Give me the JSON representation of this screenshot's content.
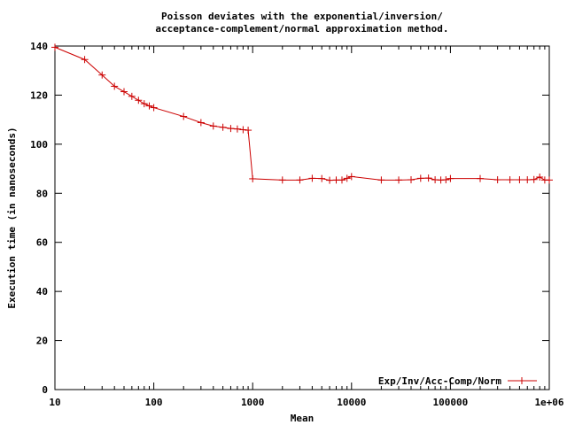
{
  "chart_data": {
    "type": "line",
    "title_lines": [
      "Poisson deviates with the exponential/inversion/",
      "acceptance-complement/normal approximation method."
    ],
    "xlabel": "Mean",
    "ylabel": "Execution time (in nanoseconds)",
    "x_scale": "log",
    "xlim": [
      10,
      1000000
    ],
    "ylim": [
      0,
      140
    ],
    "x_tick_labels": [
      "10",
      "100",
      "1000",
      "10000",
      "100000",
      "1e+06"
    ],
    "y_tick_labels": [
      "0",
      "20",
      "40",
      "60",
      "80",
      "100",
      "120",
      "140"
    ],
    "grid": false,
    "legend_position": "bottom-right",
    "series": [
      {
        "name": "Exp/Inv/Acc-Comp/Norm",
        "color": "#cc0000",
        "points": [
          [
            10,
            139.5
          ],
          [
            20,
            134.5
          ],
          [
            30,
            128.2
          ],
          [
            40,
            123.6
          ],
          [
            50,
            121.4
          ],
          [
            60,
            119.5
          ],
          [
            70,
            117.9
          ],
          [
            80,
            116.5
          ],
          [
            90,
            115.6
          ],
          [
            100,
            114.9
          ],
          [
            200,
            111.3
          ],
          [
            300,
            108.8
          ],
          [
            400,
            107.4
          ],
          [
            500,
            106.9
          ],
          [
            600,
            106.4
          ],
          [
            700,
            106.2
          ],
          [
            800,
            105.9
          ],
          [
            900,
            105.7
          ],
          [
            1000,
            85.9
          ],
          [
            2000,
            85.4
          ],
          [
            3000,
            85.4
          ],
          [
            4000,
            86.1
          ],
          [
            5000,
            86.0
          ],
          [
            6000,
            85.3
          ],
          [
            7000,
            85.4
          ],
          [
            8000,
            85.4
          ],
          [
            9000,
            86.1
          ],
          [
            10000,
            86.8
          ],
          [
            20000,
            85.4
          ],
          [
            30000,
            85.4
          ],
          [
            40000,
            85.5
          ],
          [
            50000,
            86.1
          ],
          [
            60000,
            86.2
          ],
          [
            70000,
            85.5
          ],
          [
            80000,
            85.4
          ],
          [
            90000,
            85.5
          ],
          [
            100000,
            86.0
          ],
          [
            200000,
            86.0
          ],
          [
            300000,
            85.5
          ],
          [
            400000,
            85.5
          ],
          [
            500000,
            85.5
          ],
          [
            600000,
            85.5
          ],
          [
            700000,
            85.6
          ],
          [
            800000,
            86.6
          ],
          [
            900000,
            85.4
          ],
          [
            1000000,
            85.4
          ]
        ]
      }
    ]
  }
}
